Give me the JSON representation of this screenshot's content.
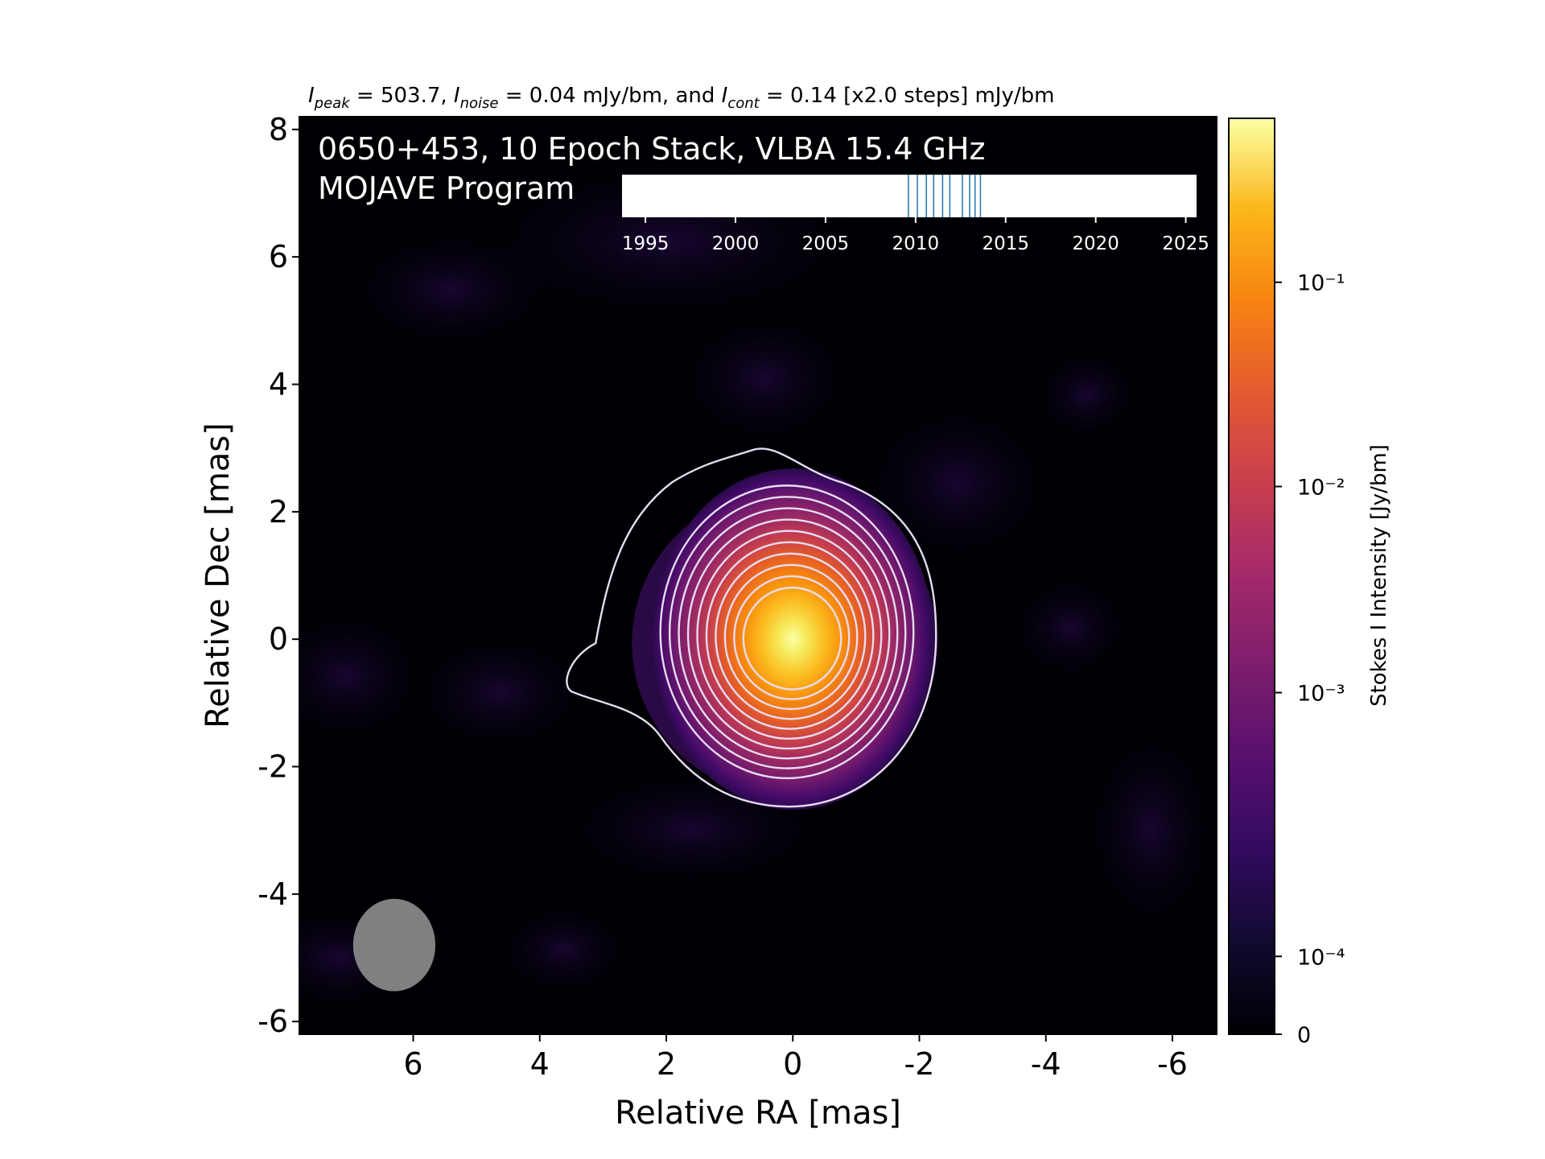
{
  "chart_data": {
    "type": "heatmap",
    "header": {
      "peak_sym": "I",
      "peak_sub": "peak",
      "peak_text": " = 503.7, ",
      "noise_sym": "I",
      "noise_sub": "noise",
      "noise_text": " = 0.04 mJy/bm, and ",
      "cont_sym": "I",
      "cont_sub": "cont",
      "cont_text": " = 0.14 [x2.0 steps] mJy/bm"
    },
    "title_line1": "0650+453, 10 Epoch Stack, VLBA 15.4 GHz",
    "title_line2": "MOJAVE Program",
    "xlabel": "Relative RA [mas]",
    "ylabel": "Relative Dec [mas]",
    "xlim": [
      7.8,
      -6.7
    ],
    "ylim": [
      -6.2,
      8.2
    ],
    "x_ticks": [
      6,
      4,
      2,
      0,
      -2,
      -4,
      -6
    ],
    "y_ticks": [
      8,
      6,
      4,
      2,
      0,
      -2,
      -4,
      -6
    ],
    "colorbar": {
      "label": "Stokes I Intensity [Jy/bm]",
      "scale": "log",
      "ticks": [
        "0",
        "10⁻⁴",
        "10⁻³",
        "10⁻²",
        "10⁻¹"
      ],
      "colormap": "inferno"
    },
    "epoch_timeline": {
      "ticks": [
        1995,
        2000,
        2005,
        2010,
        2015,
        2020,
        2025
      ],
      "range": [
        1993.7,
        2025.6
      ],
      "epochs": [
        2009.6,
        2010.1,
        2010.6,
        2011.0,
        2011.5,
        2011.9,
        2012.6,
        2013.0,
        2013.3,
        2013.6
      ],
      "epoch_color": "#1f77b4"
    },
    "core": {
      "ra": 0.0,
      "dec": 0.0,
      "peak_jy": 0.5037
    },
    "contour_count": 11,
    "beam": {
      "ra": 6.3,
      "dec": -4.8,
      "major_mas": 1.45,
      "minor_mas": 1.3,
      "color": "#808080"
    }
  }
}
